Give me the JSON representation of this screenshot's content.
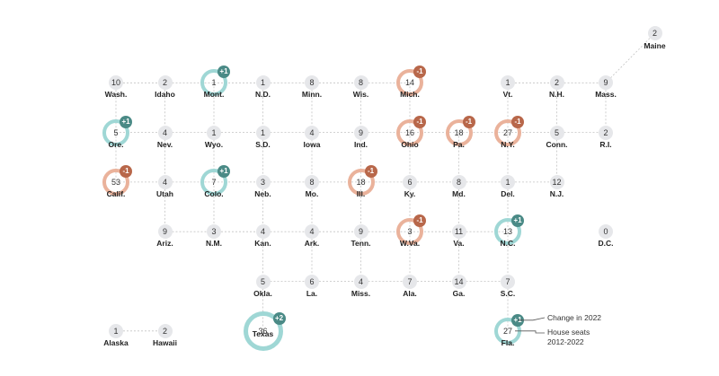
{
  "colors": {
    "gain": "#9fd7d5",
    "gain_badge": "#4a8a86",
    "loss": "#eab29b",
    "loss_badge": "#b8674a",
    "neutral": "#e6e7ea",
    "line": "#c4c4c4"
  },
  "states": [
    {
      "abbr": "Maine",
      "seats": "2",
      "col": 11,
      "row": 0,
      "change": null
    },
    {
      "abbr": "Wash.",
      "seats": "10",
      "col": 0,
      "row": 1,
      "change": null
    },
    {
      "abbr": "Idaho",
      "seats": "2",
      "col": 1,
      "row": 1,
      "change": null
    },
    {
      "abbr": "Mont.",
      "seats": "1",
      "col": 2,
      "row": 1,
      "change": "+1"
    },
    {
      "abbr": "N.D.",
      "seats": "1",
      "col": 3,
      "row": 1,
      "change": null
    },
    {
      "abbr": "Minn.",
      "seats": "8",
      "col": 4,
      "row": 1,
      "change": null
    },
    {
      "abbr": "Wis.",
      "seats": "8",
      "col": 5,
      "row": 1,
      "change": null
    },
    {
      "abbr": "Mich.",
      "seats": "14",
      "col": 6,
      "row": 1,
      "change": "-1"
    },
    {
      "abbr": "Vt.",
      "seats": "1",
      "col": 8,
      "row": 1,
      "change": null
    },
    {
      "abbr": "N.H.",
      "seats": "2",
      "col": 9,
      "row": 1,
      "change": null
    },
    {
      "abbr": "Mass.",
      "seats": "9",
      "col": 10,
      "row": 1,
      "change": null
    },
    {
      "abbr": "Ore.",
      "seats": "5",
      "col": 0,
      "row": 2,
      "change": "+1"
    },
    {
      "abbr": "Nev.",
      "seats": "4",
      "col": 1,
      "row": 2,
      "change": null
    },
    {
      "abbr": "Wyo.",
      "seats": "1",
      "col": 2,
      "row": 2,
      "change": null
    },
    {
      "abbr": "S.D.",
      "seats": "1",
      "col": 3,
      "row": 2,
      "change": null
    },
    {
      "abbr": "Iowa",
      "seats": "4",
      "col": 4,
      "row": 2,
      "change": null
    },
    {
      "abbr": "Ind.",
      "seats": "9",
      "col": 5,
      "row": 2,
      "change": null
    },
    {
      "abbr": "Ohio",
      "seats": "16",
      "col": 6,
      "row": 2,
      "change": "-1"
    },
    {
      "abbr": "Pa.",
      "seats": "18",
      "col": 7,
      "row": 2,
      "change": "-1"
    },
    {
      "abbr": "N.Y.",
      "seats": "27",
      "col": 8,
      "row": 2,
      "change": "-1"
    },
    {
      "abbr": "Conn.",
      "seats": "5",
      "col": 9,
      "row": 2,
      "change": null
    },
    {
      "abbr": "R.I.",
      "seats": "2",
      "col": 10,
      "row": 2,
      "change": null
    },
    {
      "abbr": "Calif.",
      "seats": "53",
      "col": 0,
      "row": 3,
      "change": "-1"
    },
    {
      "abbr": "Utah",
      "seats": "4",
      "col": 1,
      "row": 3,
      "change": null
    },
    {
      "abbr": "Colo.",
      "seats": "7",
      "col": 2,
      "row": 3,
      "change": "+1"
    },
    {
      "abbr": "Neb.",
      "seats": "3",
      "col": 3,
      "row": 3,
      "change": null
    },
    {
      "abbr": "Mo.",
      "seats": "8",
      "col": 4,
      "row": 3,
      "change": null
    },
    {
      "abbr": "Ill.",
      "seats": "18",
      "col": 5,
      "row": 3,
      "change": "-1"
    },
    {
      "abbr": "Ky.",
      "seats": "6",
      "col": 6,
      "row": 3,
      "change": null
    },
    {
      "abbr": "Md.",
      "seats": "8",
      "col": 7,
      "row": 3,
      "change": null
    },
    {
      "abbr": "Del.",
      "seats": "1",
      "col": 8,
      "row": 3,
      "change": null
    },
    {
      "abbr": "N.J.",
      "seats": "12",
      "col": 9,
      "row": 3,
      "change": null
    },
    {
      "abbr": "Ariz.",
      "seats": "9",
      "col": 1,
      "row": 4,
      "change": null
    },
    {
      "abbr": "N.M.",
      "seats": "3",
      "col": 2,
      "row": 4,
      "change": null
    },
    {
      "abbr": "Kan.",
      "seats": "4",
      "col": 3,
      "row": 4,
      "change": null
    },
    {
      "abbr": "Ark.",
      "seats": "4",
      "col": 4,
      "row": 4,
      "change": null
    },
    {
      "abbr": "Tenn.",
      "seats": "9",
      "col": 5,
      "row": 4,
      "change": null
    },
    {
      "abbr": "W.Va.",
      "seats": "3",
      "col": 6,
      "row": 4,
      "change": "-1"
    },
    {
      "abbr": "Va.",
      "seats": "11",
      "col": 7,
      "row": 4,
      "change": null
    },
    {
      "abbr": "N.C.",
      "seats": "13",
      "col": 8,
      "row": 4,
      "change": "+1"
    },
    {
      "abbr": "D.C.",
      "seats": "0",
      "col": 10,
      "row": 4,
      "change": null
    },
    {
      "abbr": "Okla.",
      "seats": "5",
      "col": 3,
      "row": 5,
      "change": null
    },
    {
      "abbr": "La.",
      "seats": "6",
      "col": 4,
      "row": 5,
      "change": null
    },
    {
      "abbr": "Miss.",
      "seats": "4",
      "col": 5,
      "row": 5,
      "change": null
    },
    {
      "abbr": "Ala.",
      "seats": "7",
      "col": 6,
      "row": 5,
      "change": null
    },
    {
      "abbr": "Ga.",
      "seats": "14",
      "col": 7,
      "row": 5,
      "change": null
    },
    {
      "abbr": "S.C.",
      "seats": "7",
      "col": 8,
      "row": 5,
      "change": null
    },
    {
      "abbr": "Alaska",
      "seats": "1",
      "col": 0,
      "row": 6,
      "change": null
    },
    {
      "abbr": "Hawaii",
      "seats": "2",
      "col": 1,
      "row": 6,
      "change": null
    },
    {
      "abbr": "Texas",
      "seats": "36",
      "col": 3,
      "row": 6,
      "change": "+2"
    },
    {
      "abbr": "Fla.",
      "seats": "27",
      "col": 8,
      "row": 6,
      "change": "+1"
    }
  ],
  "connections": [
    [
      "Wash.",
      "Idaho"
    ],
    [
      "Idaho",
      "Mont."
    ],
    [
      "Mont.",
      "N.D."
    ],
    [
      "N.D.",
      "Minn."
    ],
    [
      "Minn.",
      "Wis."
    ],
    [
      "Wis.",
      "Mich."
    ],
    [
      "Vt.",
      "N.H."
    ],
    [
      "N.H.",
      "Mass."
    ],
    [
      "Ore.",
      "Nev."
    ],
    [
      "Nev.",
      "Wyo."
    ],
    [
      "Wyo.",
      "S.D."
    ],
    [
      "S.D.",
      "Iowa"
    ],
    [
      "Iowa",
      "Ind."
    ],
    [
      "Ind.",
      "Ohio"
    ],
    [
      "Ohio",
      "Pa."
    ],
    [
      "Pa.",
      "N.Y."
    ],
    [
      "N.Y.",
      "Conn."
    ],
    [
      "Conn.",
      "R.I."
    ],
    [
      "Calif.",
      "Utah"
    ],
    [
      "Utah",
      "Colo."
    ],
    [
      "Colo.",
      "Neb."
    ],
    [
      "Neb.",
      "Mo."
    ],
    [
      "Mo.",
      "Ill."
    ],
    [
      "Ill.",
      "Ky."
    ],
    [
      "Ky.",
      "Md."
    ],
    [
      "Md.",
      "Del."
    ],
    [
      "Del.",
      "N.J."
    ],
    [
      "Ariz.",
      "N.M."
    ],
    [
      "N.M.",
      "Kan."
    ],
    [
      "Kan.",
      "Ark."
    ],
    [
      "Ark.",
      "Tenn."
    ],
    [
      "Tenn.",
      "W.Va."
    ],
    [
      "W.Va.",
      "Va."
    ],
    [
      "Va.",
      "N.C."
    ],
    [
      "Okla.",
      "La."
    ],
    [
      "La.",
      "Miss."
    ],
    [
      "Miss.",
      "Ala."
    ],
    [
      "Ala.",
      "Ga."
    ],
    [
      "Ga.",
      "S.C."
    ],
    [
      "Wash.",
      "Ore."
    ],
    [
      "Ore.",
      "Calif."
    ],
    [
      "Idaho",
      "Nev."
    ],
    [
      "Nev.",
      "Utah"
    ],
    [
      "Utah",
      "Ariz."
    ],
    [
      "Mont.",
      "Wyo."
    ],
    [
      "Wyo.",
      "Colo."
    ],
    [
      "Colo.",
      "N.M."
    ],
    [
      "N.D.",
      "S.D."
    ],
    [
      "S.D.",
      "Neb."
    ],
    [
      "Neb.",
      "Kan."
    ],
    [
      "Kan.",
      "Okla."
    ],
    [
      "Okla.",
      "Texas"
    ],
    [
      "Minn.",
      "Iowa"
    ],
    [
      "Iowa",
      "Mo."
    ],
    [
      "Mo.",
      "Ark."
    ],
    [
      "Ark.",
      "La."
    ],
    [
      "Wis.",
      "Ind."
    ],
    [
      "Ind.",
      "Ill."
    ],
    [
      "Ill.",
      "Tenn."
    ],
    [
      "Tenn.",
      "Miss."
    ],
    [
      "Mich.",
      "Ohio"
    ],
    [
      "Ohio",
      "Ky."
    ],
    [
      "Ky.",
      "W.Va."
    ],
    [
      "W.Va.",
      "Ala."
    ],
    [
      "Pa.",
      "Md."
    ],
    [
      "Md.",
      "Va."
    ],
    [
      "Va.",
      "Ga."
    ],
    [
      "Vt.",
      "N.Y."
    ],
    [
      "N.Y.",
      "Del."
    ],
    [
      "Del.",
      "N.C."
    ],
    [
      "N.C.",
      "S.C."
    ],
    [
      "S.C.",
      "Fla."
    ],
    [
      "N.H.",
      "Conn."
    ],
    [
      "Conn.",
      "N.J."
    ],
    [
      "Maine",
      "Mass."
    ],
    [
      "Mass.",
      "R.I."
    ],
    [
      "Alaska",
      "Hawaii"
    ]
  ],
  "legend": {
    "change_label": "Change in 2022",
    "seats_label_line1": "House seats",
    "seats_label_line2": "2012-2022"
  }
}
